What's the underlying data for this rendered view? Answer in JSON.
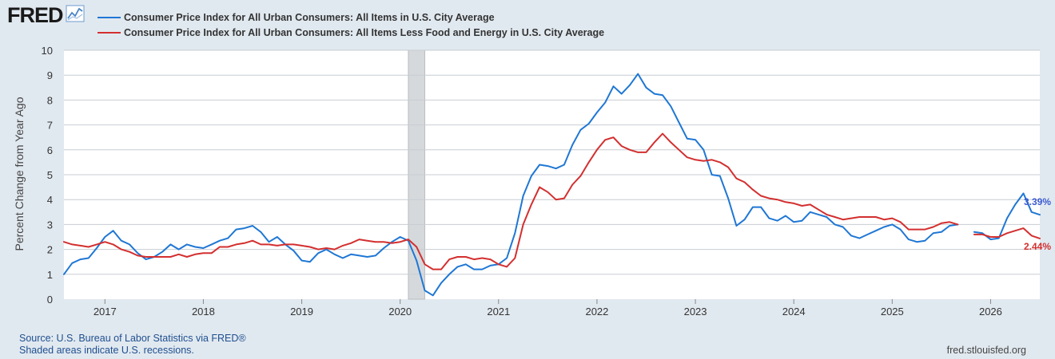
{
  "logo": {
    "text": "FRED",
    "icon": "line-chart-icon"
  },
  "chart_data": {
    "type": "line",
    "ylabel": "Percent Change from Year Ago",
    "ylim": [
      0,
      10
    ],
    "yticks": [
      0,
      1,
      2,
      3,
      4,
      5,
      6,
      7,
      8,
      9,
      10
    ],
    "xlim": [
      "2016-08",
      "2026-07"
    ],
    "xticks": [
      "2017",
      "2018",
      "2019",
      "2020",
      "2021",
      "2022",
      "2023",
      "2024",
      "2025",
      "2026"
    ],
    "grid": true,
    "legend": "top-left",
    "recession": {
      "start": "2020-02",
      "end": "2020-04",
      "color": "#d6d9dc"
    },
    "series": [
      {
        "name": "Consumer Price Index for All Urban Consumers: All Items in U.S. City Average",
        "color": "#1f77d4",
        "end_label": "3.39%",
        "points": [
          [
            "2016-08",
            1.0
          ],
          [
            "2016-09",
            1.45
          ],
          [
            "2016-10",
            1.6
          ],
          [
            "2016-11",
            1.65
          ],
          [
            "2016-12",
            2.05
          ],
          [
            "2017-01",
            2.5
          ],
          [
            "2017-02",
            2.75
          ],
          [
            "2017-03",
            2.35
          ],
          [
            "2017-04",
            2.2
          ],
          [
            "2017-05",
            1.85
          ],
          [
            "2017-06",
            1.6
          ],
          [
            "2017-07",
            1.7
          ],
          [
            "2017-08",
            1.9
          ],
          [
            "2017-09",
            2.2
          ],
          [
            "2017-10",
            2.0
          ],
          [
            "2017-11",
            2.2
          ],
          [
            "2017-12",
            2.1
          ],
          [
            "2018-01",
            2.05
          ],
          [
            "2018-02",
            2.2
          ],
          [
            "2018-03",
            2.35
          ],
          [
            "2018-04",
            2.45
          ],
          [
            "2018-05",
            2.8
          ],
          [
            "2018-06",
            2.85
          ],
          [
            "2018-07",
            2.95
          ],
          [
            "2018-08",
            2.7
          ],
          [
            "2018-09",
            2.3
          ],
          [
            "2018-10",
            2.5
          ],
          [
            "2018-11",
            2.2
          ],
          [
            "2018-12",
            1.95
          ],
          [
            "2019-01",
            1.55
          ],
          [
            "2019-02",
            1.5
          ],
          [
            "2019-03",
            1.85
          ],
          [
            "2019-04",
            2.0
          ],
          [
            "2019-05",
            1.8
          ],
          [
            "2019-06",
            1.65
          ],
          [
            "2019-07",
            1.8
          ],
          [
            "2019-08",
            1.75
          ],
          [
            "2019-09",
            1.7
          ],
          [
            "2019-10",
            1.75
          ],
          [
            "2019-11",
            2.05
          ],
          [
            "2019-12",
            2.3
          ],
          [
            "2020-01",
            2.5
          ],
          [
            "2020-02",
            2.35
          ],
          [
            "2020-03",
            1.55
          ],
          [
            "2020-04",
            0.35
          ],
          [
            "2020-05",
            0.15
          ],
          [
            "2020-06",
            0.65
          ],
          [
            "2020-07",
            1.0
          ],
          [
            "2020-08",
            1.3
          ],
          [
            "2020-09",
            1.4
          ],
          [
            "2020-10",
            1.2
          ],
          [
            "2020-11",
            1.2
          ],
          [
            "2020-12",
            1.35
          ],
          [
            "2021-01",
            1.4
          ],
          [
            "2021-02",
            1.65
          ],
          [
            "2021-03",
            2.65
          ],
          [
            "2021-04",
            4.15
          ],
          [
            "2021-05",
            4.95
          ],
          [
            "2021-06",
            5.4
          ],
          [
            "2021-07",
            5.35
          ],
          [
            "2021-08",
            5.25
          ],
          [
            "2021-09",
            5.4
          ],
          [
            "2021-10",
            6.2
          ],
          [
            "2021-11",
            6.8
          ],
          [
            "2021-12",
            7.05
          ],
          [
            "2022-01",
            7.5
          ],
          [
            "2022-02",
            7.9
          ],
          [
            "2022-03",
            8.55
          ],
          [
            "2022-04",
            8.25
          ],
          [
            "2022-05",
            8.6
          ],
          [
            "2022-06",
            9.05
          ],
          [
            "2022-07",
            8.5
          ],
          [
            "2022-08",
            8.25
          ],
          [
            "2022-09",
            8.2
          ],
          [
            "2022-10",
            7.75
          ],
          [
            "2022-11",
            7.1
          ],
          [
            "2022-12",
            6.45
          ],
          [
            "2023-01",
            6.4
          ],
          [
            "2023-02",
            6.0
          ],
          [
            "2023-03",
            5.0
          ],
          [
            "2023-04",
            4.95
          ],
          [
            "2023-05",
            4.05
          ],
          [
            "2023-06",
            2.95
          ],
          [
            "2023-07",
            3.2
          ],
          [
            "2023-08",
            3.7
          ],
          [
            "2023-09",
            3.7
          ],
          [
            "2023-10",
            3.25
          ],
          [
            "2023-11",
            3.15
          ],
          [
            "2023-12",
            3.35
          ],
          [
            "2024-01",
            3.1
          ],
          [
            "2024-02",
            3.15
          ],
          [
            "2024-03",
            3.5
          ],
          [
            "2024-04",
            3.4
          ],
          [
            "2024-05",
            3.3
          ],
          [
            "2024-06",
            3.0
          ],
          [
            "2024-07",
            2.9
          ],
          [
            "2024-08",
            2.55
          ],
          [
            "2024-09",
            2.45
          ],
          [
            "2024-10",
            2.6
          ],
          [
            "2024-11",
            2.75
          ],
          [
            "2024-12",
            2.9
          ],
          [
            "2025-01",
            3.0
          ],
          [
            "2025-02",
            2.8
          ],
          [
            "2025-03",
            2.4
          ],
          [
            "2025-04",
            2.3
          ],
          [
            "2025-05",
            2.35
          ],
          [
            "2025-06",
            2.65
          ],
          [
            "2025-07",
            2.7
          ],
          [
            "2025-08",
            2.95
          ],
          [
            "2025-09",
            3.0
          ],
          null,
          [
            "2025-11",
            2.7
          ],
          [
            "2025-12",
            2.65
          ],
          [
            "2026-01",
            2.4
          ],
          [
            "2026-02",
            2.45
          ],
          [
            "2026-03",
            3.25
          ],
          [
            "2026-04",
            3.8
          ],
          [
            "2026-05",
            4.25
          ],
          [
            "2026-06",
            3.5
          ],
          [
            "2026-07",
            3.39
          ]
        ]
      },
      {
        "name": "Consumer Price Index for All Urban Consumers: All Items Less Food and Energy in U.S. City Average",
        "color": "#d32f2f",
        "end_label": "2.44%",
        "points": [
          [
            "2016-08",
            2.3
          ],
          [
            "2016-09",
            2.2
          ],
          [
            "2016-10",
            2.15
          ],
          [
            "2016-11",
            2.1
          ],
          [
            "2016-12",
            2.2
          ],
          [
            "2017-01",
            2.3
          ],
          [
            "2017-02",
            2.2
          ],
          [
            "2017-03",
            2.0
          ],
          [
            "2017-04",
            1.9
          ],
          [
            "2017-05",
            1.75
          ],
          [
            "2017-06",
            1.7
          ],
          [
            "2017-07",
            1.7
          ],
          [
            "2017-08",
            1.7
          ],
          [
            "2017-09",
            1.7
          ],
          [
            "2017-10",
            1.8
          ],
          [
            "2017-11",
            1.7
          ],
          [
            "2017-12",
            1.8
          ],
          [
            "2018-01",
            1.85
          ],
          [
            "2018-02",
            1.85
          ],
          [
            "2018-03",
            2.1
          ],
          [
            "2018-04",
            2.1
          ],
          [
            "2018-05",
            2.2
          ],
          [
            "2018-06",
            2.25
          ],
          [
            "2018-07",
            2.35
          ],
          [
            "2018-08",
            2.2
          ],
          [
            "2018-09",
            2.2
          ],
          [
            "2018-10",
            2.15
          ],
          [
            "2018-11",
            2.2
          ],
          [
            "2018-12",
            2.2
          ],
          [
            "2019-01",
            2.15
          ],
          [
            "2019-02",
            2.1
          ],
          [
            "2019-03",
            2.0
          ],
          [
            "2019-04",
            2.05
          ],
          [
            "2019-05",
            2.0
          ],
          [
            "2019-06",
            2.15
          ],
          [
            "2019-07",
            2.25
          ],
          [
            "2019-08",
            2.4
          ],
          [
            "2019-09",
            2.35
          ],
          [
            "2019-10",
            2.3
          ],
          [
            "2019-11",
            2.3
          ],
          [
            "2019-12",
            2.25
          ],
          [
            "2020-01",
            2.3
          ],
          [
            "2020-02",
            2.4
          ],
          [
            "2020-03",
            2.1
          ],
          [
            "2020-04",
            1.4
          ],
          [
            "2020-05",
            1.2
          ],
          [
            "2020-06",
            1.2
          ],
          [
            "2020-07",
            1.6
          ],
          [
            "2020-08",
            1.7
          ],
          [
            "2020-09",
            1.7
          ],
          [
            "2020-10",
            1.6
          ],
          [
            "2020-11",
            1.65
          ],
          [
            "2020-12",
            1.6
          ],
          [
            "2021-01",
            1.4
          ],
          [
            "2021-02",
            1.3
          ],
          [
            "2021-03",
            1.65
          ],
          [
            "2021-04",
            3.0
          ],
          [
            "2021-05",
            3.8
          ],
          [
            "2021-06",
            4.5
          ],
          [
            "2021-07",
            4.3
          ],
          [
            "2021-08",
            4.0
          ],
          [
            "2021-09",
            4.05
          ],
          [
            "2021-10",
            4.6
          ],
          [
            "2021-11",
            4.95
          ],
          [
            "2021-12",
            5.5
          ],
          [
            "2022-01",
            6.0
          ],
          [
            "2022-02",
            6.4
          ],
          [
            "2022-03",
            6.5
          ],
          [
            "2022-04",
            6.15
          ],
          [
            "2022-05",
            6.0
          ],
          [
            "2022-06",
            5.9
          ],
          [
            "2022-07",
            5.9
          ],
          [
            "2022-08",
            6.3
          ],
          [
            "2022-09",
            6.65
          ],
          [
            "2022-10",
            6.3
          ],
          [
            "2022-11",
            6.0
          ],
          [
            "2022-12",
            5.7
          ],
          [
            "2023-01",
            5.6
          ],
          [
            "2023-02",
            5.55
          ],
          [
            "2023-03",
            5.6
          ],
          [
            "2023-04",
            5.5
          ],
          [
            "2023-05",
            5.3
          ],
          [
            "2023-06",
            4.85
          ],
          [
            "2023-07",
            4.7
          ],
          [
            "2023-08",
            4.4
          ],
          [
            "2023-09",
            4.15
          ],
          [
            "2023-10",
            4.05
          ],
          [
            "2023-11",
            4.0
          ],
          [
            "2023-12",
            3.9
          ],
          [
            "2024-01",
            3.85
          ],
          [
            "2024-02",
            3.75
          ],
          [
            "2024-03",
            3.8
          ],
          [
            "2024-04",
            3.6
          ],
          [
            "2024-05",
            3.4
          ],
          [
            "2024-06",
            3.3
          ],
          [
            "2024-07",
            3.2
          ],
          [
            "2024-08",
            3.25
          ],
          [
            "2024-09",
            3.3
          ],
          [
            "2024-10",
            3.3
          ],
          [
            "2024-11",
            3.3
          ],
          [
            "2024-12",
            3.2
          ],
          [
            "2025-01",
            3.25
          ],
          [
            "2025-02",
            3.1
          ],
          [
            "2025-03",
            2.8
          ],
          [
            "2025-04",
            2.8
          ],
          [
            "2025-05",
            2.8
          ],
          [
            "2025-06",
            2.9
          ],
          [
            "2025-07",
            3.05
          ],
          [
            "2025-08",
            3.1
          ],
          [
            "2025-09",
            3.0
          ],
          null,
          [
            "2025-11",
            2.6
          ],
          [
            "2025-12",
            2.6
          ],
          [
            "2026-01",
            2.5
          ],
          [
            "2026-02",
            2.5
          ],
          [
            "2026-03",
            2.65
          ],
          [
            "2026-04",
            2.75
          ],
          [
            "2026-05",
            2.85
          ],
          [
            "2026-06",
            2.55
          ],
          [
            "2026-07",
            2.44
          ]
        ]
      }
    ]
  },
  "footer": {
    "source": "Source: U.S. Bureau of Labor Statistics via FRED®",
    "note": "Shaded areas indicate U.S. recessions.",
    "site": "fred.stlouisfed.org"
  }
}
